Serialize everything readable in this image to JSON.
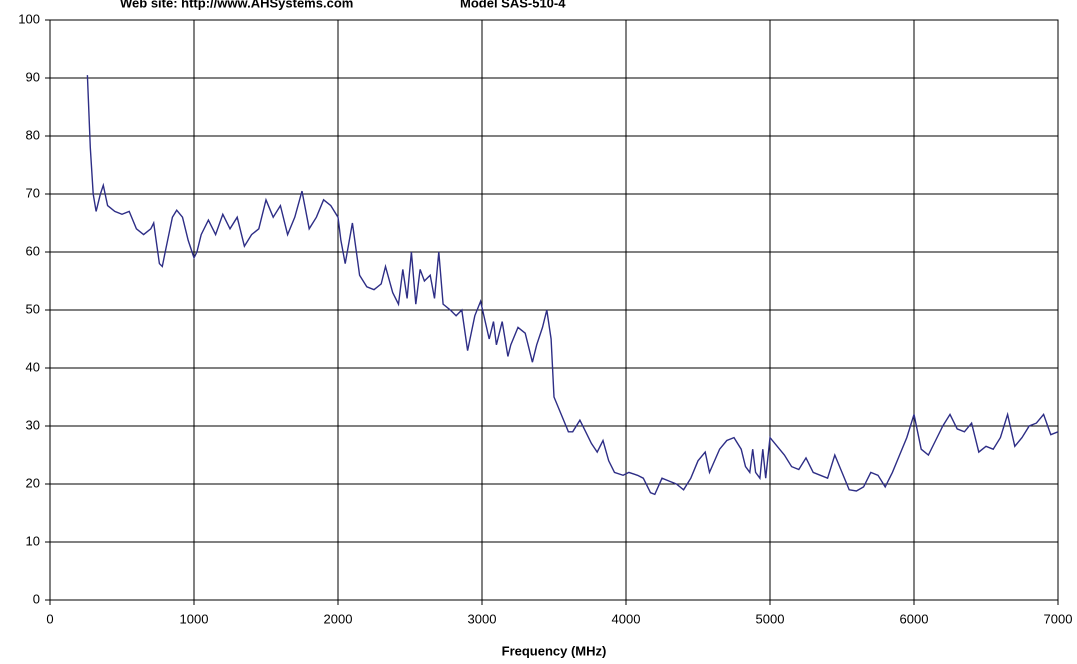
{
  "chart_data": {
    "type": "line",
    "header_left": "Web site:  http://www.AHSystems.com",
    "header_right": "Model SAS-510-4",
    "x_label": "Frequency (MHz)",
    "xlim": [
      0,
      7000
    ],
    "xticks": [
      0,
      1000,
      2000,
      3000,
      4000,
      5000,
      6000,
      7000
    ],
    "ylim": [
      0,
      100
    ],
    "yticks": [
      0,
      10,
      20,
      30,
      40,
      50,
      60,
      70,
      80,
      90,
      100
    ],
    "grid": true,
    "series": [
      {
        "color": "#2e2e86",
        "x": [
          260,
          280,
          300,
          320,
          350,
          370,
          400,
          450,
          500,
          550,
          600,
          650,
          700,
          720,
          760,
          780,
          800,
          850,
          880,
          920,
          960,
          1000,
          1020,
          1050,
          1100,
          1150,
          1200,
          1250,
          1300,
          1350,
          1400,
          1450,
          1500,
          1550,
          1600,
          1650,
          1700,
          1750,
          1800,
          1850,
          1900,
          1950,
          2000,
          2020,
          2050,
          2100,
          2150,
          2200,
          2250,
          2300,
          2330,
          2380,
          2420,
          2450,
          2480,
          2510,
          2540,
          2570,
          2600,
          2640,
          2670,
          2700,
          2730,
          2780,
          2820,
          2860,
          2900,
          2950,
          2990,
          3050,
          3080,
          3100,
          3140,
          3180,
          3200,
          3250,
          3300,
          3350,
          3380,
          3420,
          3450,
          3480,
          3500,
          3550,
          3600,
          3630,
          3680,
          3720,
          3760,
          3800,
          3840,
          3880,
          3920,
          3980,
          4020,
          4080,
          4120,
          4170,
          4200,
          4250,
          4300,
          4350,
          4400,
          4450,
          4500,
          4550,
          4580,
          4650,
          4700,
          4750,
          4800,
          4830,
          4860,
          4880,
          4900,
          4930,
          4950,
          4970,
          5000,
          5050,
          5100,
          5150,
          5200,
          5250,
          5300,
          5350,
          5400,
          5450,
          5500,
          5550,
          5600,
          5650,
          5700,
          5750,
          5800,
          5850,
          5900,
          5950,
          6000,
          6050,
          6100,
          6150,
          6200,
          6250,
          6300,
          6350,
          6400,
          6450,
          6500,
          6550,
          6600,
          6650,
          6700,
          6750,
          6800,
          6850,
          6900,
          6950,
          7000
        ],
        "values": [
          90.5,
          78,
          70,
          67,
          70,
          71.5,
          68,
          67,
          66.5,
          67,
          64,
          63,
          64,
          65,
          58,
          57.5,
          60,
          66,
          67.2,
          66,
          62,
          59,
          60,
          63,
          65.5,
          63,
          66.5,
          64,
          66,
          61,
          63,
          64,
          69,
          66,
          68,
          63,
          66,
          70.5,
          64,
          66,
          69,
          68,
          66,
          62,
          58,
          65,
          56,
          54,
          53.5,
          54.5,
          57.5,
          53,
          51,
          57,
          52,
          60,
          51,
          57,
          55,
          56,
          52,
          60,
          51,
          50,
          49,
          50,
          43,
          49,
          51.5,
          45,
          48,
          44,
          48,
          42,
          44,
          47,
          46,
          41,
          44,
          47,
          50,
          45,
          35,
          32,
          29,
          29,
          31,
          29,
          27,
          25.5,
          27.5,
          24,
          22,
          21.5,
          22,
          21.5,
          21,
          18.5,
          18.2,
          21,
          20.5,
          20,
          19,
          21,
          24,
          25.5,
          22,
          26,
          27.5,
          28,
          26,
          23,
          22,
          26,
          22,
          21,
          26,
          21,
          28,
          26.5,
          25,
          23,
          22.5,
          24.5,
          22,
          21.5,
          21,
          25,
          22,
          19,
          18.8,
          19.5,
          22,
          21.5,
          19.5,
          22,
          25,
          28,
          32,
          26,
          25,
          27.5,
          30,
          32,
          29.5,
          29,
          30.5,
          25.5,
          26.5,
          26,
          28,
          32,
          26.5,
          28,
          30,
          30.5,
          32,
          28.5,
          29
        ]
      }
    ]
  }
}
